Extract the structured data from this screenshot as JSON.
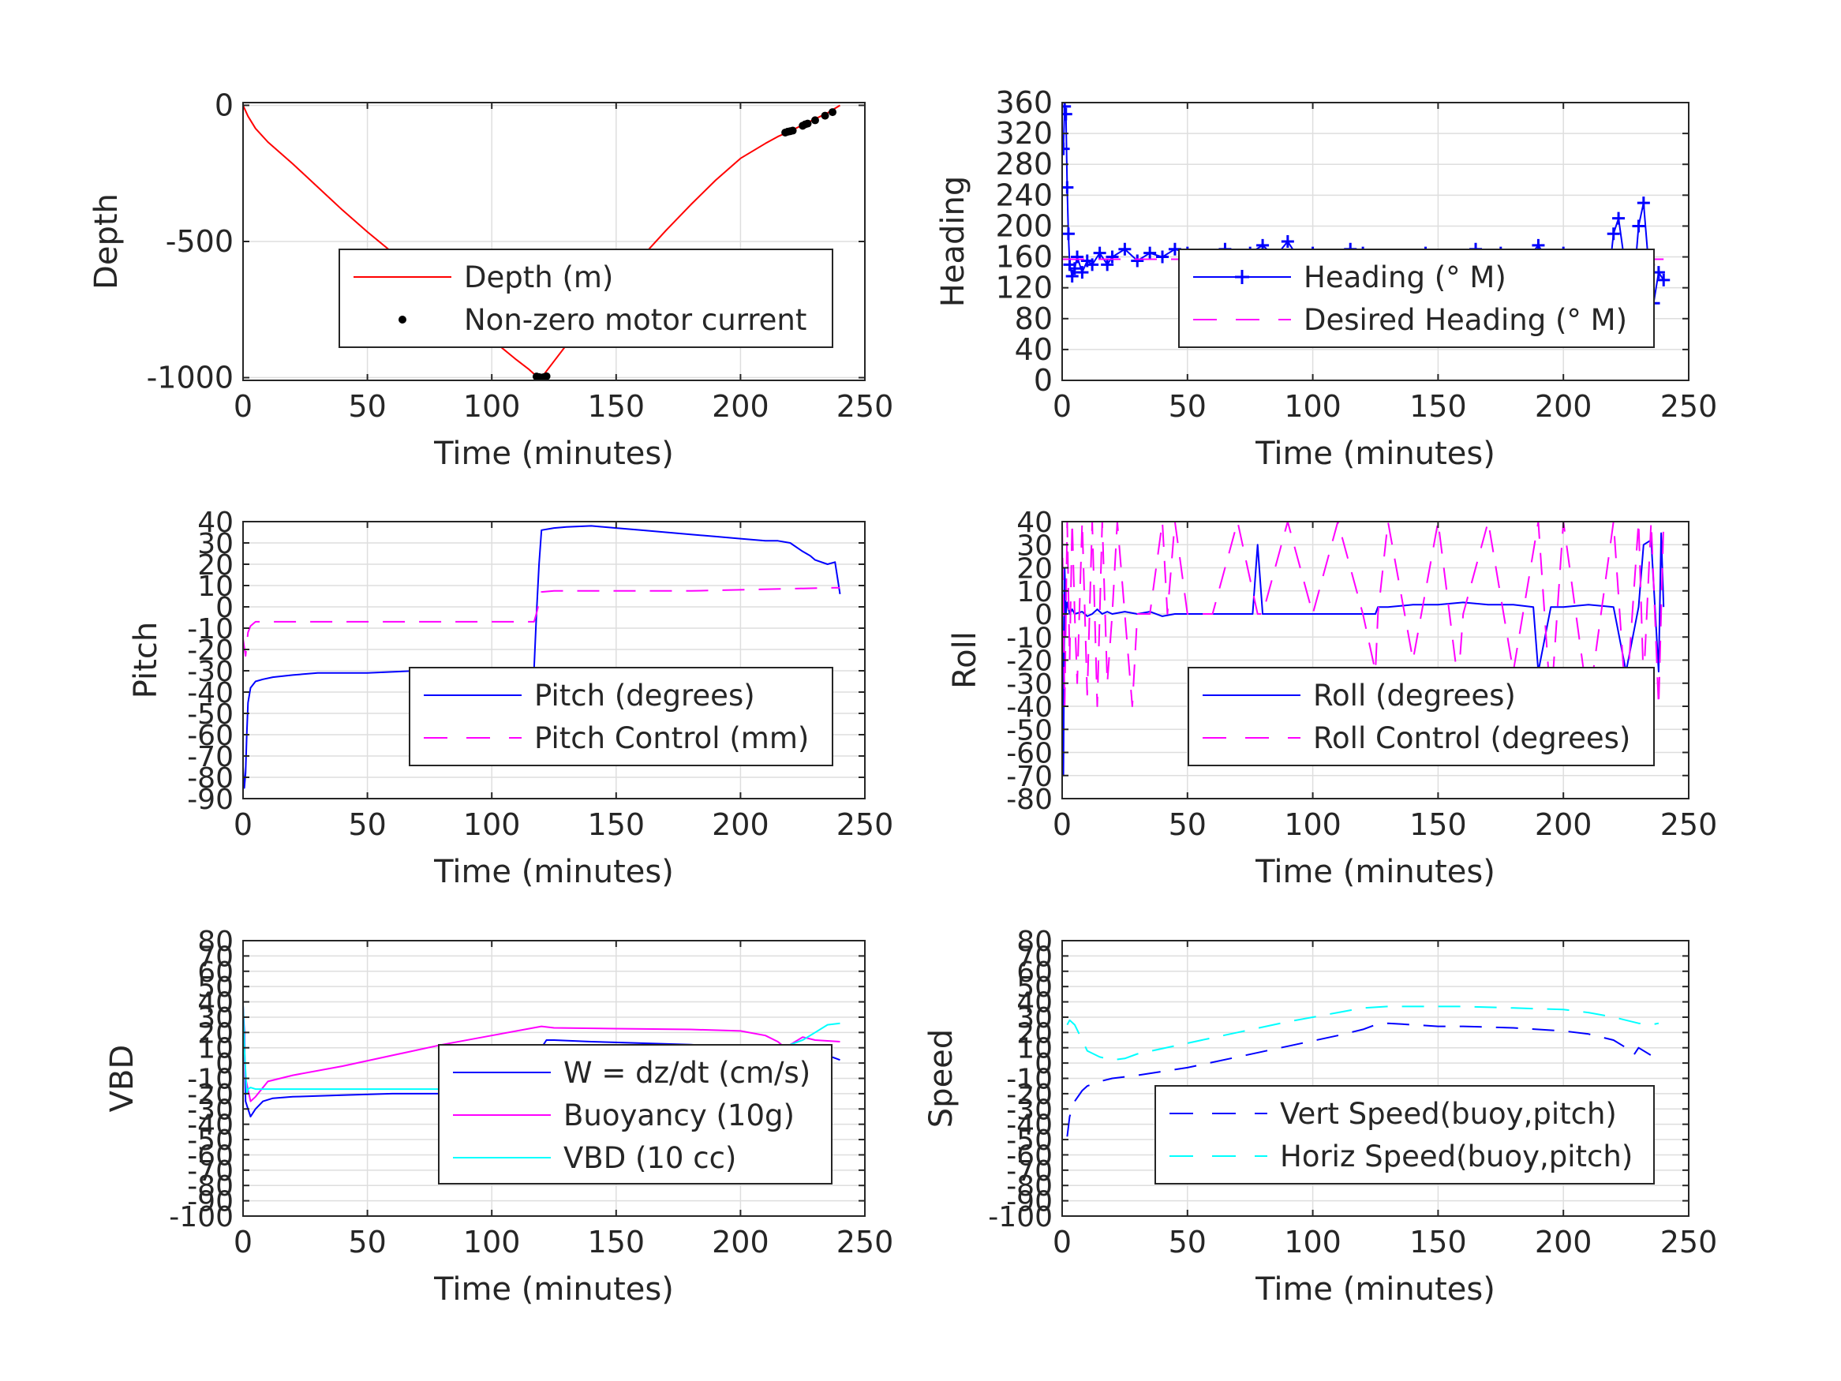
{
  "chart_data": [
    {
      "type": "line",
      "id": "depth",
      "title": "",
      "xlabel": "Time (minutes)",
      "ylabel": "Depth",
      "xlim": [
        0,
        250
      ],
      "ylim": [
        -1010,
        10
      ],
      "xticks": [
        0,
        50,
        100,
        150,
        200,
        250
      ],
      "yticks": [
        0,
        -500,
        -1000
      ],
      "grid": true,
      "legend": "bottom-right",
      "series": [
        {
          "name": "Depth (m)",
          "color": "#ff0000",
          "style": "solid",
          "x": [
            0,
            2,
            5,
            10,
            20,
            30,
            40,
            50,
            60,
            70,
            80,
            90,
            100,
            110,
            115,
            118,
            120,
            125,
            130,
            140,
            150,
            160,
            170,
            180,
            190,
            200,
            210,
            215,
            220,
            225,
            230,
            235,
            240
          ],
          "y": [
            0,
            -40,
            -85,
            -135,
            -215,
            -300,
            -385,
            -465,
            -540,
            -620,
            -700,
            -780,
            -860,
            -935,
            -970,
            -995,
            -1000,
            -940,
            -880,
            -770,
            -665,
            -560,
            -460,
            -365,
            -275,
            -195,
            -140,
            -115,
            -95,
            -72,
            -50,
            -28,
            0
          ]
        },
        {
          "name": "Non-zero motor current",
          "color": "#000000",
          "style": "dots",
          "x": [
            118,
            119,
            120,
            121,
            122,
            218,
            219,
            220,
            221,
            225,
            226,
            227,
            230,
            234,
            237
          ],
          "y": [
            -996,
            -998,
            -1000,
            -998,
            -995,
            -100,
            -97,
            -95,
            -93,
            -75,
            -70,
            -67,
            -55,
            -38,
            -25
          ]
        }
      ]
    },
    {
      "type": "line",
      "id": "heading",
      "title": "",
      "xlabel": "Time (minutes)",
      "ylabel": "Heading",
      "xlim": [
        0,
        250
      ],
      "ylim": [
        0,
        360
      ],
      "xticks": [
        0,
        50,
        100,
        150,
        200,
        250
      ],
      "yticks": [
        0,
        40,
        80,
        120,
        160,
        200,
        240,
        280,
        320,
        360
      ],
      "grid": true,
      "legend": "bottom-right",
      "series": [
        {
          "name": "Heading (° M)",
          "color": "#0000ff",
          "style": "plus",
          "x": [
            0.5,
            1,
            1.5,
            2,
            2.5,
            3,
            4,
            5,
            6,
            8,
            10,
            12,
            15,
            18,
            20,
            25,
            30,
            35,
            40,
            45,
            50,
            55,
            60,
            65,
            70,
            75,
            80,
            85,
            90,
            95,
            100,
            105,
            110,
            115,
            120,
            125,
            130,
            135,
            140,
            145,
            150,
            155,
            160,
            165,
            170,
            175,
            180,
            185,
            190,
            195,
            200,
            205,
            210,
            215,
            218,
            220,
            222,
            225,
            228,
            230,
            232,
            234,
            236,
            238,
            240
          ],
          "y": [
            300,
            355,
            345,
            250,
            190,
            150,
            135,
            145,
            160,
            140,
            155,
            150,
            165,
            150,
            160,
            170,
            155,
            165,
            160,
            170,
            165,
            155,
            160,
            170,
            150,
            165,
            175,
            160,
            180,
            155,
            165,
            150,
            160,
            170,
            165,
            155,
            150,
            145,
            160,
            165,
            150,
            140,
            160,
            170,
            150,
            165,
            160,
            155,
            175,
            150,
            165,
            155,
            145,
            160,
            130,
            190,
            210,
            140,
            120,
            200,
            230,
            150,
            100,
            140,
            130
          ]
        },
        {
          "name": "Desired Heading (° M)",
          "color": "#ff00ff",
          "style": "dashed",
          "x": [
            0,
            240
          ],
          "y": [
            157,
            157
          ]
        }
      ]
    },
    {
      "type": "line",
      "id": "pitch",
      "title": "",
      "xlabel": "Time (minutes)",
      "ylabel": "Pitch",
      "xlim": [
        0,
        250
      ],
      "ylim": [
        -90,
        40
      ],
      "xticks": [
        0,
        50,
        100,
        150,
        200,
        250
      ],
      "yticks": [
        -90,
        -80,
        -70,
        -60,
        -50,
        -40,
        -30,
        -20,
        -10,
        0,
        10,
        20,
        30,
        40
      ],
      "grid": true,
      "legend": "bottom-right",
      "series": [
        {
          "name": "Pitch (degrees)",
          "color": "#0000ff",
          "style": "solid",
          "x": [
            0,
            0.5,
            1,
            1.5,
            2,
            3,
            5,
            8,
            12,
            20,
            30,
            40,
            50,
            60,
            70,
            80,
            90,
            100,
            110,
            117,
            118,
            119,
            120,
            125,
            130,
            140,
            150,
            160,
            170,
            180,
            190,
            200,
            210,
            215,
            220,
            225,
            228,
            230,
            235,
            238,
            240
          ],
          "y": [
            -75,
            -85,
            -78,
            -60,
            -45,
            -38,
            -35,
            -34,
            -33,
            -32,
            -31,
            -31,
            -31,
            -30.5,
            -30,
            -30,
            -29.5,
            -29,
            -29,
            -29,
            -3,
            20,
            36,
            37,
            37.5,
            38,
            37,
            36,
            35,
            34,
            33,
            32,
            31,
            31,
            30,
            26,
            24,
            22,
            20,
            21,
            6
          ]
        },
        {
          "name": "Pitch Control (mm)",
          "color": "#ff00ff",
          "style": "dashed",
          "x": [
            0,
            1,
            2,
            3,
            5,
            20,
            50,
            80,
            110,
            117,
            118,
            120,
            125,
            150,
            180,
            200,
            220,
            240
          ],
          "y": [
            -15,
            -23,
            -12,
            -9,
            -7,
            -7,
            -7,
            -7,
            -7,
            -7,
            -3,
            7,
            7.5,
            7.5,
            7.5,
            8,
            8.5,
            9
          ]
        }
      ]
    },
    {
      "type": "line",
      "id": "roll",
      "title": "",
      "xlabel": "Time (minutes)",
      "ylabel": "Roll",
      "xlim": [
        0,
        250
      ],
      "ylim": [
        -80,
        40
      ],
      "xticks": [
        0,
        50,
        100,
        150,
        200,
        250
      ],
      "yticks": [
        -80,
        -70,
        -60,
        -50,
        -40,
        -30,
        -20,
        -10,
        0,
        10,
        20,
        30,
        40
      ],
      "grid": true,
      "legend": "bottom-right",
      "series": [
        {
          "name": "Roll (degrees)",
          "color": "#0000ff",
          "style": "solid",
          "x": [
            0,
            0.5,
            1,
            1.5,
            2,
            3,
            4,
            5,
            8,
            10,
            12,
            14,
            16,
            18,
            20,
            25,
            30,
            35,
            40,
            45,
            50,
            60,
            70,
            76,
            78,
            80,
            90,
            100,
            110,
            120,
            125,
            126,
            130,
            140,
            150,
            160,
            170,
            180,
            188,
            190,
            195,
            200,
            210,
            220,
            225,
            230,
            232,
            235,
            238,
            239,
            240
          ],
          "y": [
            35,
            -70,
            20,
            0,
            5,
            0,
            2,
            0,
            1,
            -1,
            0,
            2,
            0,
            1,
            0,
            1,
            0,
            1,
            -1,
            0,
            0,
            0,
            0,
            0,
            30,
            0,
            0,
            0,
            0,
            0,
            0,
            3,
            3,
            4,
            4,
            5,
            4,
            4,
            3,
            -25,
            3,
            3,
            4,
            3,
            -25,
            3,
            30,
            32,
            -25,
            35,
            3
          ]
        },
        {
          "name": "Roll Control (degrees)",
          "color": "#ff00ff",
          "style": "dashed",
          "x": [
            0,
            1,
            2,
            3,
            4,
            5,
            6,
            8,
            10,
            12,
            14,
            16,
            18,
            20,
            22,
            25,
            28,
            30,
            32,
            35,
            40,
            42,
            45,
            50,
            60,
            70,
            78,
            80,
            90,
            100,
            110,
            120,
            125,
            126,
            130,
            140,
            150,
            158,
            160,
            170,
            180,
            190,
            195,
            200,
            210,
            220,
            225,
            230,
            232,
            235,
            238,
            240
          ],
          "y": [
            40,
            -40,
            40,
            -20,
            40,
            0,
            -30,
            40,
            -35,
            40,
            -40,
            40,
            -30,
            0,
            40,
            0,
            -40,
            0,
            0,
            0,
            40,
            0,
            40,
            0,
            0,
            40,
            0,
            0,
            40,
            0,
            40,
            0,
            -25,
            0,
            40,
            -20,
            40,
            -30,
            0,
            40,
            -25,
            40,
            -40,
            40,
            -40,
            40,
            -40,
            40,
            -30,
            40,
            -40,
            40
          ]
        }
      ]
    },
    {
      "type": "line",
      "id": "vbd",
      "title": "",
      "xlabel": "Time (minutes)",
      "ylabel": "VBD",
      "xlim": [
        0,
        250
      ],
      "ylim": [
        -100,
        80
      ],
      "xticks": [
        0,
        50,
        100,
        150,
        200,
        250
      ],
      "ytick_labels": [
        "80",
        "70",
        "60",
        "50",
        "40",
        "30",
        "20",
        "10",
        "0",
        "-10",
        "-20",
        "-30",
        "-40",
        "-50",
        "-60",
        "-70",
        "-80",
        "-90",
        "-100"
      ],
      "grid": true,
      "legend": "bottom-right",
      "series": [
        {
          "name": "W = dz/dt (cm/s)",
          "color": "#0000ff",
          "style": "solid",
          "x": [
            0,
            0.5,
            1,
            2,
            3,
            5,
            8,
            12,
            20,
            40,
            60,
            80,
            100,
            115,
            118,
            120,
            122,
            125,
            140,
            160,
            180,
            200,
            215,
            220,
            225,
            230,
            240
          ],
          "y": [
            38,
            20,
            -25,
            -30,
            -35,
            -30,
            -25,
            -23,
            -22,
            -21,
            -20,
            -20,
            -20,
            -20,
            -15,
            10,
            15,
            15,
            14,
            13,
            12,
            10,
            8,
            6,
            5,
            8,
            2
          ]
        },
        {
          "name": "Buoyancy (10g)",
          "color": "#ff00ff",
          "style": "solid",
          "x": [
            0,
            1,
            3,
            5,
            10,
            20,
            40,
            60,
            80,
            100,
            120,
            125,
            150,
            180,
            200,
            210,
            215,
            218,
            220,
            225,
            230,
            240
          ],
          "y": [
            25,
            -10,
            -25,
            -22,
            -12,
            -8,
            -2,
            5,
            12,
            18,
            24,
            23,
            22.5,
            22,
            21,
            18,
            14,
            10,
            12,
            17,
            15,
            14
          ]
        },
        {
          "name": "VBD (10 cc)",
          "color": "#00ffff",
          "style": "solid",
          "x": [
            0,
            0.5,
            1.5,
            2,
            3,
            5,
            20,
            50,
            80,
            100,
            110,
            115,
            117,
            118,
            120,
            125,
            150,
            180,
            200,
            210,
            215,
            218,
            220,
            225,
            230,
            235,
            240
          ],
          "y": [
            38,
            10,
            -20,
            -17,
            -16,
            -17,
            -17,
            -17,
            -17,
            -17,
            -16,
            -16,
            -16,
            -10,
            10,
            10,
            10,
            10,
            10,
            10,
            10,
            8,
            12,
            15,
            20,
            25,
            26
          ]
        }
      ]
    },
    {
      "type": "line",
      "id": "speed",
      "title": "",
      "xlabel": "Time (minutes)",
      "ylabel": "Speed",
      "xlim": [
        0,
        250
      ],
      "ylim": [
        -100,
        80
      ],
      "xticks": [
        0,
        50,
        100,
        150,
        200,
        250
      ],
      "ytick_labels": [
        "80",
        "70",
        "60",
        "50",
        "40",
        "30",
        "20",
        "10",
        "0",
        "-10",
        "-20",
        "-30",
        "-40",
        "-50",
        "-60",
        "-70",
        "-80",
        "-90",
        "-100"
      ],
      "grid": true,
      "legend": "bottom-right",
      "series": [
        {
          "name": "Vert Speed(buoy,pitch)",
          "color": "#0000ff",
          "style": "dashed",
          "x": [
            2,
            3,
            5,
            8,
            10,
            15,
            20,
            30,
            50,
            70,
            90,
            110,
            120,
            125,
            130,
            140,
            150,
            160,
            180,
            200,
            210,
            220,
            225,
            228,
            230,
            235,
            238
          ],
          "y": [
            -48,
            -35,
            -25,
            -18,
            -15,
            -12,
            -10,
            -8,
            -3,
            4,
            11,
            18,
            22,
            25,
            26,
            25,
            24,
            24,
            23,
            21,
            19,
            15,
            10,
            5,
            10,
            5,
            8
          ]
        },
        {
          "name": "Horiz Speed(buoy,pitch)",
          "color": "#00ffff",
          "style": "dashed",
          "x": [
            2,
            3,
            5,
            8,
            10,
            15,
            20,
            25,
            30,
            50,
            70,
            90,
            110,
            120,
            130,
            140,
            150,
            160,
            180,
            200,
            210,
            220,
            225,
            230,
            235,
            238
          ],
          "y": [
            25,
            28,
            25,
            15,
            8,
            4,
            2,
            3,
            6,
            13,
            20,
            27,
            33,
            36,
            37,
            37,
            37,
            37,
            36,
            35,
            33,
            30,
            28,
            26,
            25,
            26
          ]
        }
      ]
    }
  ]
}
